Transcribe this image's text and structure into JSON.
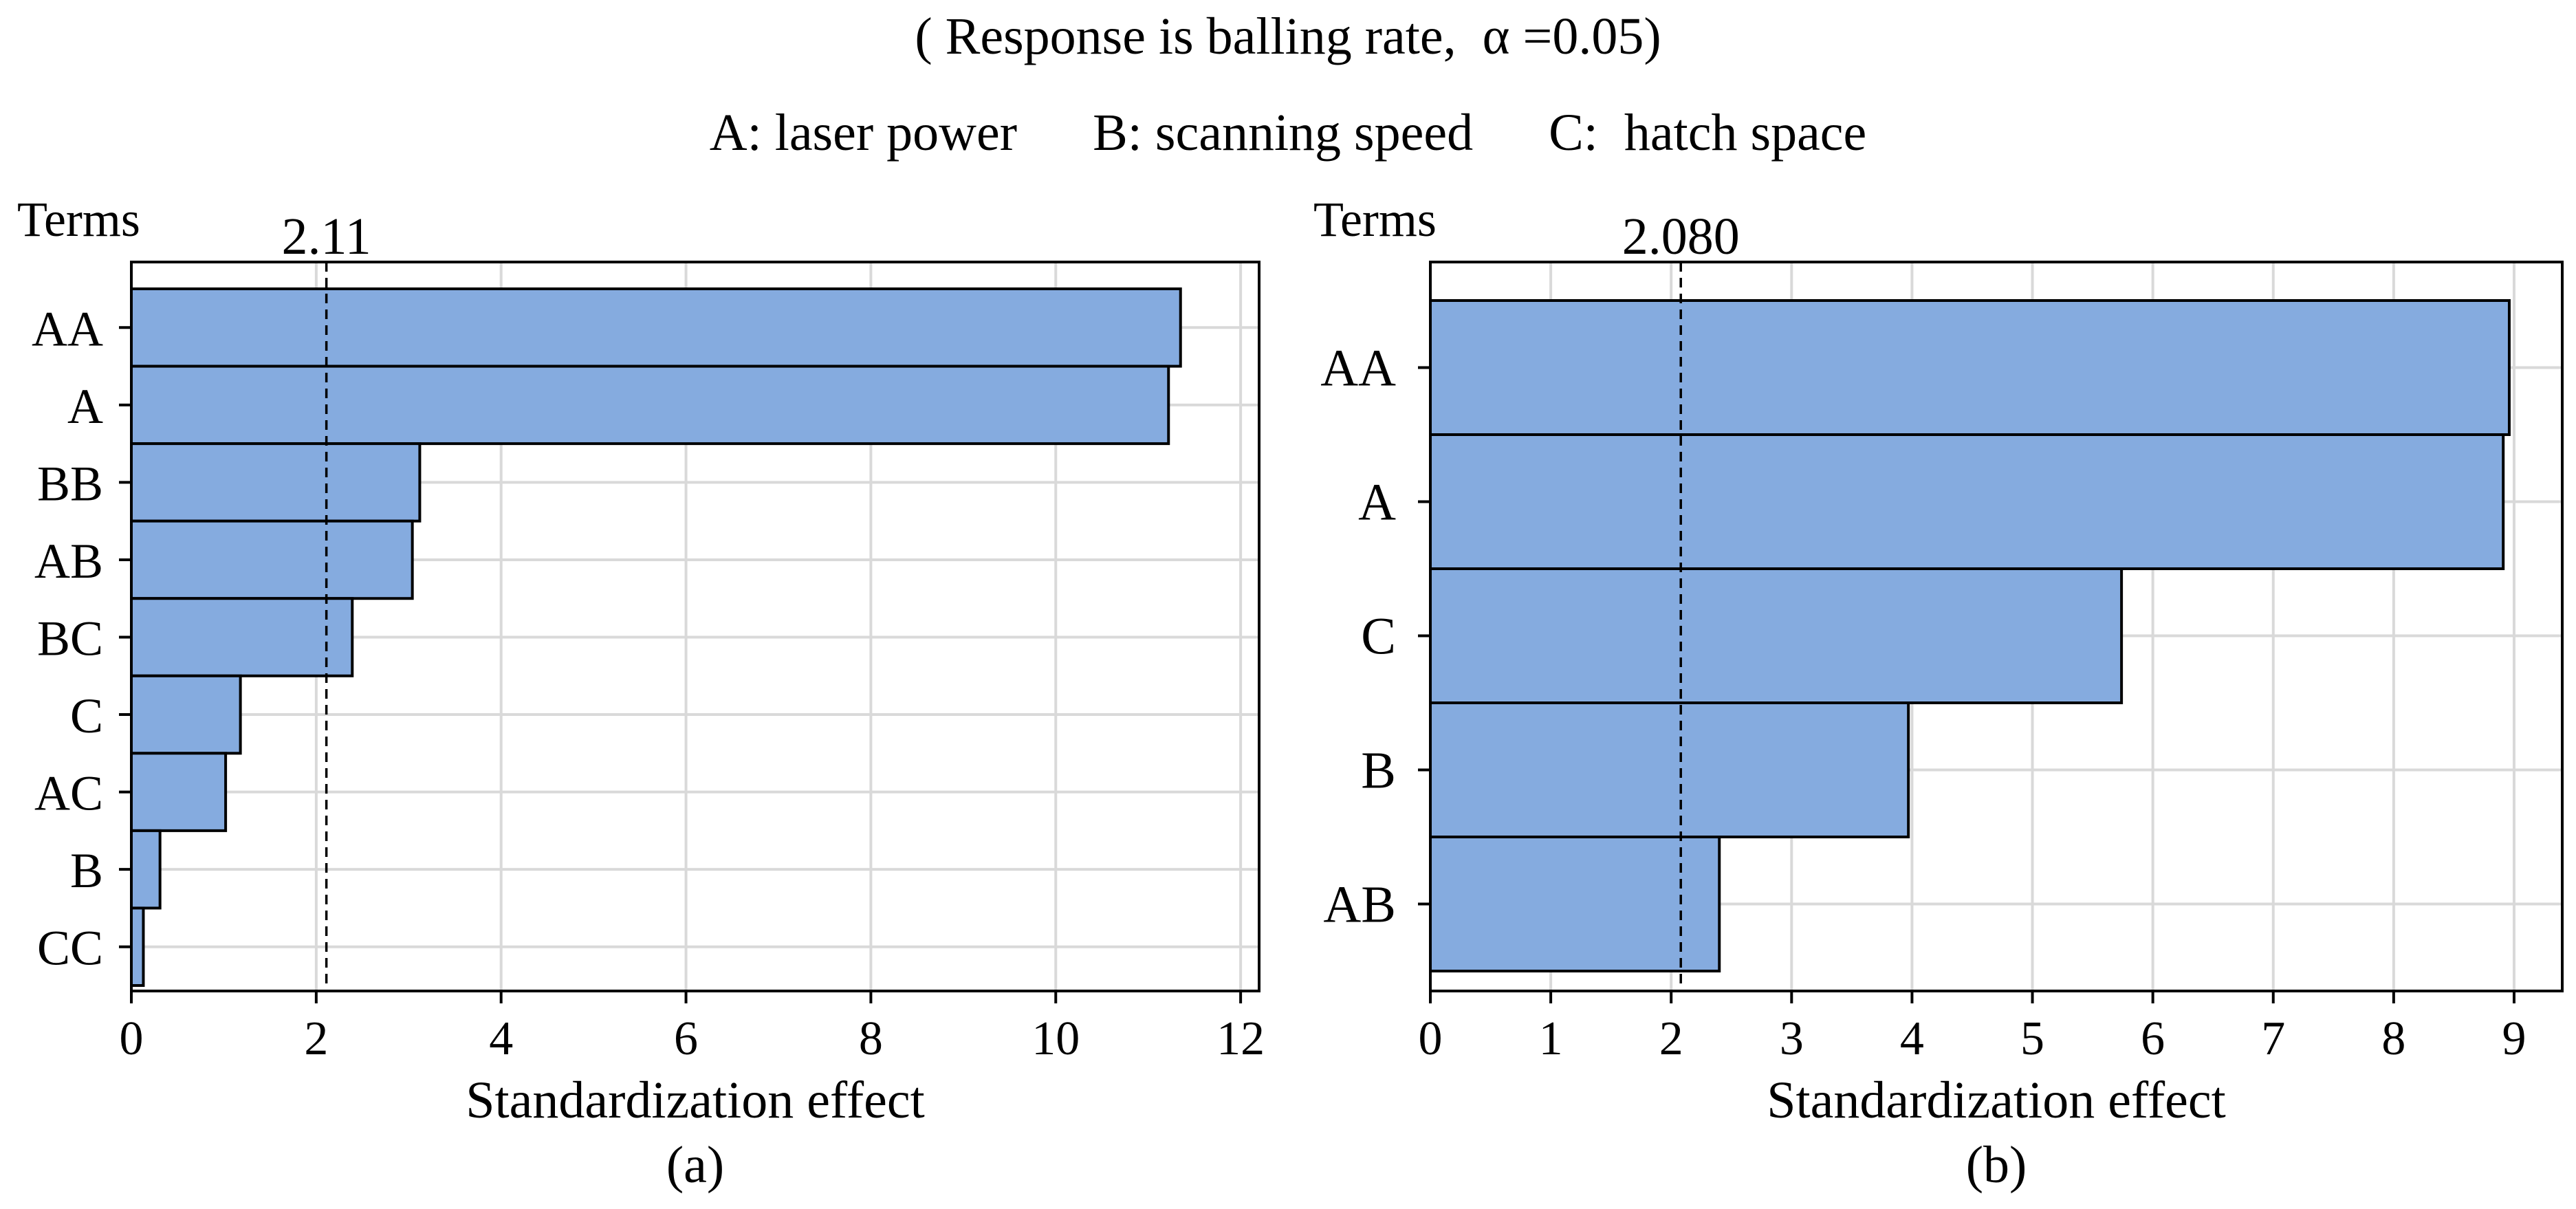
{
  "header": {
    "subtitle": "( Response is balling rate,  α =0.05)",
    "legend": [
      "A: laser power",
      "B: scanning speed",
      "C:  hatch space"
    ]
  },
  "colors": {
    "bar_fill": "#85abdf",
    "bar_edge": "#000000",
    "grid": "#d9d9d9"
  },
  "chart_data": [
    {
      "type": "bar",
      "orientation": "horizontal",
      "panel_label": "(a)",
      "ylabel": "Terms",
      "xlabel": "Standardization effect",
      "categories": [
        "AA",
        "A",
        "BB",
        "AB",
        "BC",
        "C",
        "AC",
        "B",
        "CC"
      ],
      "values": [
        11.35,
        11.22,
        3.12,
        3.04,
        2.39,
        1.18,
        1.02,
        0.31,
        0.13
      ],
      "reference_line": {
        "value": 2.11,
        "label": "2.11",
        "style": "dashed"
      },
      "xlim": [
        0,
        12.2
      ],
      "xticks": [
        0,
        2,
        4,
        6,
        8,
        10,
        12
      ],
      "grid": true
    },
    {
      "type": "bar",
      "orientation": "horizontal",
      "panel_label": "(b)",
      "ylabel": "Terms",
      "xlabel": "Standardization effect",
      "categories": [
        "AA",
        "A",
        "C",
        "B",
        "AB"
      ],
      "values": [
        8.96,
        8.91,
        5.74,
        3.97,
        2.4
      ],
      "reference_line": {
        "value": 2.08,
        "label": "2.080",
        "style": "dashed"
      },
      "xlim": [
        0,
        9.4
      ],
      "xticks": [
        0,
        1,
        2,
        3,
        4,
        5,
        6,
        7,
        8,
        9
      ],
      "grid": true
    }
  ]
}
